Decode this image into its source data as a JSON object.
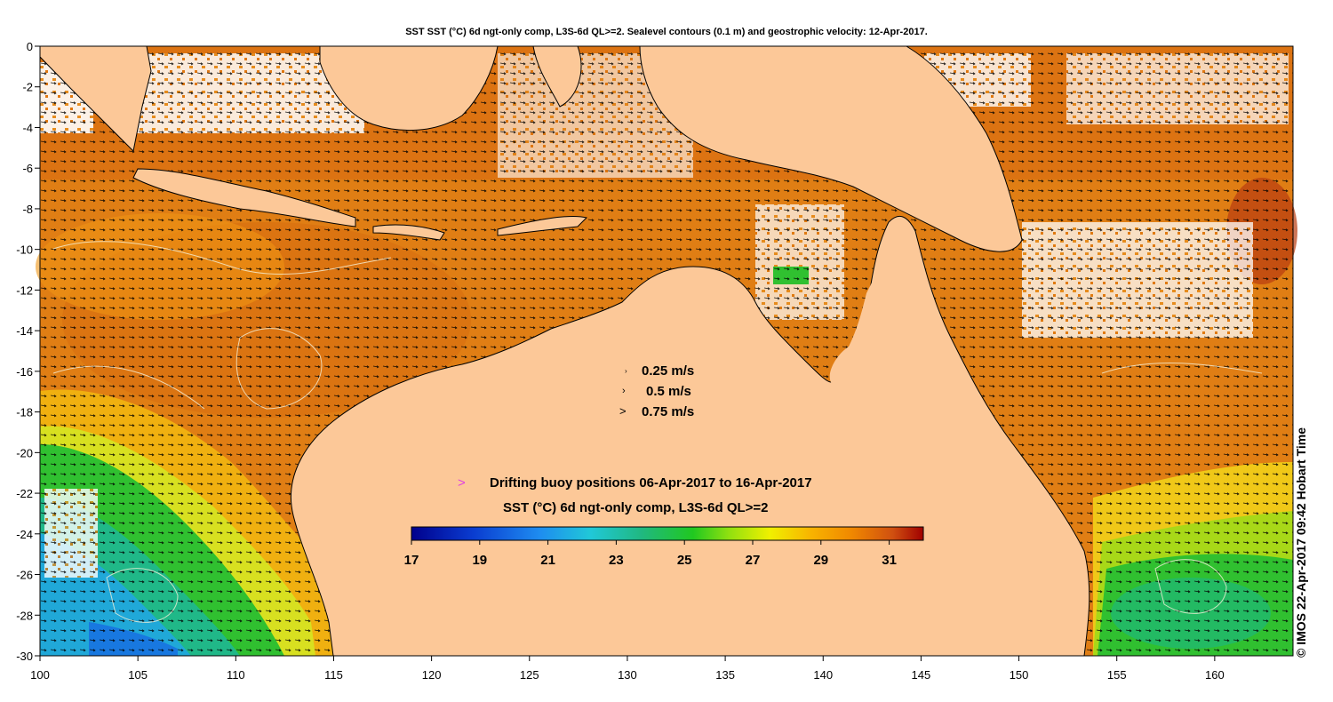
{
  "title": "SST SST (°C) 6d ngt-only comp, L3S-6d QL>=2. Sealevel contours (0.1 m) and geostrophic velocity: 12-Apr-2017.",
  "credit": "© IMOS 22-Apr-2017 09:42 Hobart Time",
  "axes": {
    "x_ticks": [
      "100",
      "105",
      "110",
      "115",
      "120",
      "125",
      "130",
      "135",
      "140",
      "145",
      "150",
      "155",
      "160"
    ],
    "y_ticks": [
      "0",
      "-2",
      "-4",
      "-6",
      "-8",
      "-10",
      "-12",
      "-14",
      "-16",
      "-18",
      "-20",
      "-22",
      "-24",
      "-26",
      "-28",
      "-30"
    ],
    "lon_range": [
      100,
      164
    ],
    "lat_range": [
      -30,
      0
    ]
  },
  "velocity_legend": [
    {
      "label": "0.25 m/s"
    },
    {
      "label": "0.5 m/s"
    },
    {
      "label": "0.75 m/s"
    }
  ],
  "buoy_legend": {
    "marker": ">",
    "marker_color": "#e040e0",
    "label": "Drifting buoy positions 06-Apr-2017 to 16-Apr-2017"
  },
  "colorbar": {
    "title": "SST (°C) 6d ngt-only comp, L3S-6d QL>=2",
    "range": [
      17,
      32
    ],
    "ticks": [
      "17",
      "19",
      "21",
      "23",
      "25",
      "27",
      "29",
      "31"
    ]
  },
  "colors": {
    "land": "#fcc898",
    "warm_sst": "#e07810",
    "hot_sst": "#c85010",
    "mid_sst": "#f0a010",
    "cool_sst": "#30c030",
    "cold_sst": "#20a8d8"
  }
}
